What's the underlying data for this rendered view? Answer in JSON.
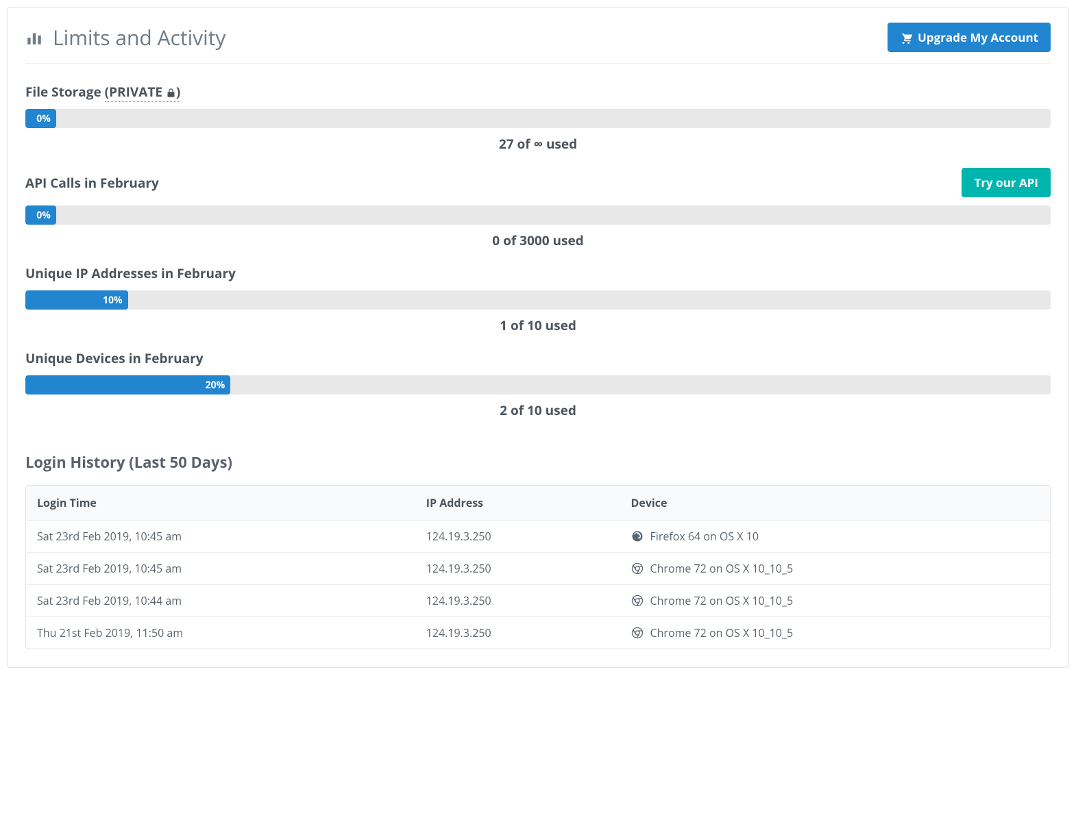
{
  "header": {
    "title": "Limits and Activity",
    "upgrade_label": "Upgrade My Account"
  },
  "sections": {
    "file_storage": {
      "title_prefix": "File Storage ",
      "private_label": "(PRIVATE ",
      "private_suffix": ")",
      "percent_label": "0%",
      "percent_width": 3,
      "usage_text": "27 of ∞ used"
    },
    "api_calls": {
      "title": "API Calls in February",
      "button_label": "Try our API",
      "percent_label": "0%",
      "percent_width": 3,
      "usage_text": "0 of 3000 used"
    },
    "unique_ips": {
      "title": "Unique IP Addresses in February",
      "percent_label": "10%",
      "percent_width": 10,
      "usage_text": "1 of 10 used"
    },
    "unique_devices": {
      "title": "Unique Devices in February",
      "percent_label": "20%",
      "percent_width": 20,
      "usage_text": "2 of 10 used"
    }
  },
  "login_history": {
    "title": "Login History (Last 50 Days)",
    "columns": {
      "time": "Login Time",
      "ip": "IP Address",
      "device": "Device"
    },
    "rows": [
      {
        "time": "Sat 23rd Feb 2019, 10:45 am",
        "ip": "124.19.3.250",
        "browser": "firefox",
        "device": "Firefox 64 on OS X 10"
      },
      {
        "time": "Sat 23rd Feb 2019, 10:45 am",
        "ip": "124.19.3.250",
        "browser": "chrome",
        "device": "Chrome 72 on OS X 10_10_5"
      },
      {
        "time": "Sat 23rd Feb 2019, 10:44 am",
        "ip": "124.19.3.250",
        "browser": "chrome",
        "device": "Chrome 72 on OS X 10_10_5"
      },
      {
        "time": "Thu 21st Feb 2019, 11:50 am",
        "ip": "124.19.3.250",
        "browser": "chrome",
        "device": "Chrome 72 on OS X 10_10_5"
      }
    ]
  },
  "colors": {
    "primary": "#2185d0",
    "teal": "#00b5ad",
    "track": "#e8e8e8",
    "text": "#4b545d",
    "muted": "#6e7a86",
    "border": "#e5e5e5",
    "thead_bg": "#f9fafb"
  }
}
